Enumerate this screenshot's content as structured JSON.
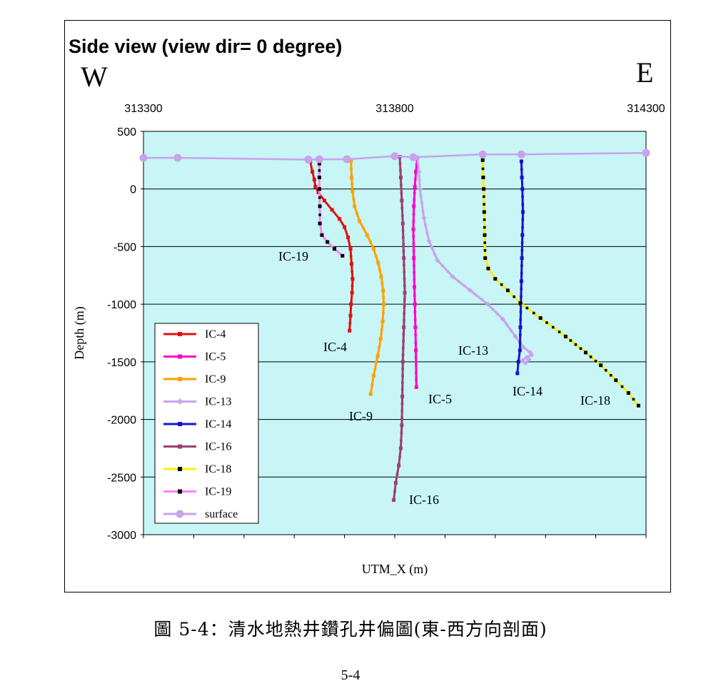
{
  "chart_data": {
    "type": "line",
    "title": "Side view (view dir= 0 degree)",
    "direction_left": "W",
    "direction_right": "E",
    "xlabel": "UTM_X (m)",
    "ylabel": "Depth (m)",
    "xlim": [
      313300,
      314300
    ],
    "ylim": [
      -3000,
      500
    ],
    "x_ticks": [
      "313300",
      "313800",
      "314300"
    ],
    "y_ticks": [
      "500",
      "0",
      "-500",
      "-1000",
      "-1500",
      "-2000",
      "-2500",
      "-3000"
    ],
    "grid": "horizontal",
    "background": "#c8f5f5",
    "legend_position": "lower-left",
    "series": [
      {
        "name": "IC-4",
        "color": "#e01010",
        "marker": "square",
        "label": "IC-4",
        "points": [
          [
            313632,
            240
          ],
          [
            313636,
            150
          ],
          [
            313640,
            80
          ],
          [
            313642,
            20
          ],
          [
            313648,
            -30
          ],
          [
            313660,
            -100
          ],
          [
            313675,
            -180
          ],
          [
            313690,
            -260
          ],
          [
            313700,
            -330
          ],
          [
            313707,
            -420
          ],
          [
            313712,
            -520
          ],
          [
            313714,
            -650
          ],
          [
            313716,
            -780
          ],
          [
            313715,
            -900
          ],
          [
            313713,
            -1000
          ],
          [
            313712,
            -1100
          ],
          [
            313710,
            -1230
          ]
        ]
      },
      {
        "name": "IC-5",
        "color": "#ff00cc",
        "marker": "square",
        "label": "IC-5",
        "points": [
          [
            313845,
            270
          ],
          [
            313842,
            150
          ],
          [
            313840,
            20
          ],
          [
            313838,
            -150
          ],
          [
            313837,
            -350
          ],
          [
            313838,
            -600
          ],
          [
            313839,
            -850
          ],
          [
            313840,
            -1000
          ],
          [
            313841,
            -1200
          ],
          [
            313842,
            -1400
          ],
          [
            313843,
            -1720
          ]
        ]
      },
      {
        "name": "IC-9",
        "color": "#ffa000",
        "marker": "square",
        "label": "IC-9",
        "points": [
          [
            313713,
            240
          ],
          [
            313714,
            100
          ],
          [
            313716,
            -20
          ],
          [
            313720,
            -150
          ],
          [
            313730,
            -280
          ],
          [
            313745,
            -400
          ],
          [
            313758,
            -520
          ],
          [
            313767,
            -640
          ],
          [
            313773,
            -760
          ],
          [
            313777,
            -880
          ],
          [
            313778,
            -1000
          ],
          [
            313776,
            -1150
          ],
          [
            313772,
            -1300
          ],
          [
            313766,
            -1450
          ],
          [
            313758,
            -1620
          ],
          [
            313752,
            -1780
          ]
        ]
      },
      {
        "name": "IC-13",
        "color": "#c8a2ec",
        "marker": "diamond",
        "label": "IC-13",
        "points": [
          [
            313845,
            270
          ],
          [
            313848,
            150
          ],
          [
            313850,
            0
          ],
          [
            313858,
            -250
          ],
          [
            313868,
            -450
          ],
          [
            313885,
            -620
          ],
          [
            313915,
            -760
          ],
          [
            313950,
            -880
          ],
          [
            313985,
            -1000
          ],
          [
            314015,
            -1130
          ],
          [
            314040,
            -1280
          ],
          [
            314055,
            -1370
          ],
          [
            314070,
            -1420
          ],
          [
            314072,
            -1440
          ],
          [
            314063,
            -1460
          ],
          [
            314053,
            -1490
          ],
          [
            314060,
            -1510
          ],
          [
            314067,
            -1480
          ]
        ]
      },
      {
        "name": "IC-14",
        "color": "#1414d0",
        "marker": "square",
        "label": "IC-14",
        "points": [
          [
            314052,
            240
          ],
          [
            314053,
            100
          ],
          [
            314054,
            0
          ],
          [
            314055,
            -200
          ],
          [
            314054,
            -400
          ],
          [
            314053,
            -600
          ],
          [
            314052,
            -800
          ],
          [
            314051,
            -1000
          ],
          [
            314050,
            -1200
          ],
          [
            314049,
            -1400
          ],
          [
            314046,
            -1500
          ],
          [
            314044,
            -1600
          ]
        ]
      },
      {
        "name": "IC-16",
        "color": "#9b4070",
        "marker": "square",
        "label": "IC-16",
        "points": [
          [
            313810,
            280
          ],
          [
            313812,
            100
          ],
          [
            313814,
            -100
          ],
          [
            313816,
            -300
          ],
          [
            313818,
            -600
          ],
          [
            313820,
            -900
          ],
          [
            313818,
            -1200
          ],
          [
            313816,
            -1500
          ],
          [
            313815,
            -1800
          ],
          [
            313814,
            -2050
          ],
          [
            313812,
            -2250
          ],
          [
            313808,
            -2400
          ],
          [
            313802,
            -2550
          ],
          [
            313798,
            -2700
          ]
        ]
      },
      {
        "name": "IC-18",
        "color": "#ffee00",
        "marker": "square",
        "label": "IC-18",
        "points": [
          [
            313975,
            250
          ],
          [
            313976,
            100
          ],
          [
            313977,
            0
          ],
          [
            313978,
            -200
          ],
          [
            313979,
            -400
          ],
          [
            313980,
            -600
          ],
          [
            313986,
            -690
          ],
          [
            314000,
            -780
          ],
          [
            314025,
            -880
          ],
          [
            314050,
            -990
          ],
          [
            314090,
            -1120
          ],
          [
            314140,
            -1280
          ],
          [
            314180,
            -1420
          ],
          [
            314210,
            -1530
          ],
          [
            314240,
            -1660
          ],
          [
            314265,
            -1770
          ],
          [
            314285,
            -1880
          ]
        ]
      },
      {
        "name": "IC-19",
        "color": "#ff80ff",
        "marker": "square",
        "label": "IC-19",
        "points": [
          [
            313650,
            220
          ],
          [
            313650,
            100
          ],
          [
            313650,
            0
          ],
          [
            313651,
            -150
          ],
          [
            313651,
            -300
          ],
          [
            313655,
            -400
          ],
          [
            313666,
            -460
          ],
          [
            313680,
            -520
          ],
          [
            313696,
            -580
          ]
        ]
      },
      {
        "name": "surface",
        "color": "#c8a2ec",
        "marker": "circle",
        "label": "",
        "points": [
          [
            313300,
            270
          ],
          [
            313368,
            270
          ],
          [
            313628,
            255
          ],
          [
            313650,
            258
          ],
          [
            313705,
            258
          ],
          [
            313800,
            285
          ],
          [
            313837,
            275
          ],
          [
            313975,
            300
          ],
          [
            314052,
            300
          ],
          [
            314300,
            313
          ]
        ]
      }
    ]
  },
  "caption": "圖  5-4：清水地熱井鑽孔井偏圖(東-西方向剖面)",
  "page_number": "5-4"
}
